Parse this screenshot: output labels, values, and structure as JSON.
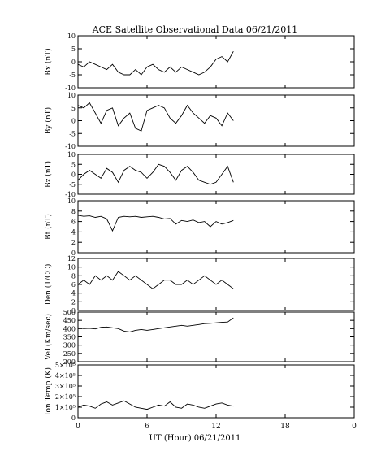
{
  "title": "ACE Satellite Observational Data   06/21/2011",
  "xlabel": "UT (Hour)   06/21/2011",
  "chart_data": [
    {
      "type": "line",
      "ylabel": "Bx (nT)",
      "ylim": [
        -10,
        10
      ],
      "yticks": [
        "-10",
        "-5",
        "0",
        "5",
        "10"
      ],
      "ytick_values": [
        -10,
        -5,
        0,
        5,
        10
      ],
      "xlim": [
        0,
        24
      ],
      "series": [
        {
          "x": [
            0,
            0.5,
            1,
            1.5,
            2,
            2.5,
            3,
            3.5,
            4,
            4.5,
            5,
            5.5,
            6,
            6.5,
            7,
            7.5,
            8,
            8.5,
            9,
            9.5,
            10,
            10.5,
            11,
            11.5,
            12,
            12.5,
            13,
            13.5
          ],
          "values": [
            -1,
            -2,
            0,
            -1,
            -2,
            -3,
            -1,
            -4,
            -5,
            -5,
            -3,
            -5,
            -2,
            -1,
            -3,
            -4,
            -2,
            -4,
            -2,
            -3,
            -4,
            -5,
            -4,
            -2,
            1,
            2,
            0,
            4
          ]
        }
      ]
    },
    {
      "type": "line",
      "ylabel": "By (nT)",
      "ylim": [
        -10,
        10
      ],
      "yticks": [
        "-10",
        "-5",
        "0",
        "5",
        "10"
      ],
      "ytick_values": [
        -10,
        -5,
        0,
        5,
        10
      ],
      "xlim": [
        0,
        24
      ],
      "series": [
        {
          "x": [
            0,
            0.5,
            1,
            1.5,
            2,
            2.5,
            3,
            3.5,
            4,
            4.5,
            5,
            5.5,
            6,
            6.5,
            7,
            7.5,
            8,
            8.5,
            9,
            9.5,
            10,
            10.5,
            11,
            11.5,
            12,
            12.5,
            13,
            13.5
          ],
          "values": [
            6,
            5,
            7,
            3,
            -1,
            4,
            5,
            -2,
            1,
            3,
            -3,
            -4,
            4,
            5,
            6,
            5,
            1,
            -1,
            2,
            6,
            3,
            1,
            -1,
            2,
            1,
            -2,
            3,
            0
          ]
        }
      ]
    },
    {
      "type": "line",
      "ylabel": "Bz (nT)",
      "ylim": [
        -10,
        10
      ],
      "yticks": [
        "-10",
        "-5",
        "0",
        "5",
        "10"
      ],
      "ytick_values": [
        -10,
        -5,
        0,
        5,
        10
      ],
      "xlim": [
        0,
        24
      ],
      "series": [
        {
          "x": [
            0,
            0.5,
            1,
            1.5,
            2,
            2.5,
            3,
            3.5,
            4,
            4.5,
            5,
            5.5,
            6,
            6.5,
            7,
            7.5,
            8,
            8.5,
            9,
            9.5,
            10,
            10.5,
            11,
            11.5,
            12,
            12.5,
            13,
            13.5
          ],
          "values": [
            -3,
            0,
            2,
            0,
            -2,
            3,
            1,
            -4,
            2,
            4,
            2,
            1,
            -2,
            1,
            5,
            4,
            1,
            -3,
            2,
            4,
            1,
            -3,
            -4,
            -5,
            -4,
            0,
            4,
            -4
          ]
        }
      ]
    },
    {
      "type": "line",
      "ylabel": "Bt (nT)",
      "ylim": [
        0,
        10
      ],
      "yticks": [
        "0",
        "2",
        "4",
        "6",
        "8",
        "10"
      ],
      "ytick_values": [
        0,
        2,
        4,
        6,
        8,
        10
      ],
      "xlim": [
        0,
        24
      ],
      "series": [
        {
          "x": [
            0,
            0.5,
            1,
            1.5,
            2,
            2.5,
            3,
            3.5,
            4,
            4.5,
            5,
            5.5,
            6,
            6.5,
            7,
            7.5,
            8,
            8.5,
            9,
            9.5,
            10,
            10.5,
            11,
            11.5,
            12,
            12.5,
            13,
            13.5
          ],
          "values": [
            7.2,
            7.0,
            7.1,
            6.8,
            7.0,
            6.5,
            4.2,
            6.8,
            7.0,
            6.9,
            7.0,
            6.8,
            6.9,
            7.0,
            6.8,
            6.5,
            6.6,
            5.5,
            6.2,
            6.0,
            6.3,
            5.8,
            6.0,
            5.0,
            6.0,
            5.5,
            5.8,
            6.2
          ]
        }
      ]
    },
    {
      "type": "line",
      "ylabel": "Den (1/CC)",
      "ylim": [
        0,
        12
      ],
      "yticks": [
        "0",
        "2",
        "4",
        "6",
        "8",
        "10",
        "12"
      ],
      "ytick_values": [
        0,
        2,
        4,
        6,
        8,
        10,
        12
      ],
      "xlim": [
        0,
        24
      ],
      "series": [
        {
          "x": [
            0,
            0.5,
            1,
            1.5,
            2,
            2.5,
            3,
            3.5,
            4,
            4.5,
            5,
            5.5,
            6,
            6.5,
            7,
            7.5,
            8,
            8.5,
            9,
            9.5,
            10,
            10.5,
            11,
            11.5,
            12,
            12.5,
            13,
            13.5
          ],
          "values": [
            6,
            7,
            6,
            8,
            7,
            8,
            7,
            9,
            8,
            7,
            8,
            7,
            6,
            5,
            6,
            7,
            7,
            6,
            6,
            7,
            6,
            7,
            8,
            7,
            6,
            7,
            6,
            5
          ]
        }
      ]
    },
    {
      "type": "line",
      "ylabel": "Vel (Km/sec)",
      "ylim": [
        200,
        500
      ],
      "yticks": [
        "200",
        "250",
        "300",
        "350",
        "400",
        "450",
        "500"
      ],
      "ytick_values": [
        200,
        250,
        300,
        350,
        400,
        450,
        500
      ],
      "xlim": [
        0,
        24
      ],
      "series": [
        {
          "x": [
            0,
            0.5,
            1,
            1.5,
            2,
            2.5,
            3,
            3.5,
            4,
            4.5,
            5,
            5.5,
            6,
            6.5,
            7,
            7.5,
            8,
            8.5,
            9,
            9.5,
            10,
            10.5,
            11,
            11.5,
            12,
            12.5,
            13,
            13.5
          ],
          "values": [
            405,
            400,
            402,
            398,
            408,
            410,
            405,
            400,
            385,
            380,
            390,
            395,
            390,
            395,
            400,
            405,
            410,
            415,
            420,
            415,
            420,
            425,
            430,
            432,
            435,
            438,
            440,
            465
          ]
        }
      ]
    },
    {
      "type": "line",
      "ylabel": "Ion Temp (K)",
      "ylim": [
        0,
        500000
      ],
      "yticks": [
        "0",
        "1×10⁵",
        "2×10⁵",
        "3×10⁵",
        "4×10⁵",
        "5×10⁵"
      ],
      "ytick_values": [
        0,
        100000,
        200000,
        300000,
        400000,
        500000
      ],
      "xlim": [
        0,
        24
      ],
      "series": [
        {
          "x": [
            0,
            0.5,
            1,
            1.5,
            2,
            2.5,
            3,
            3.5,
            4,
            4.5,
            5,
            5.5,
            6,
            6.5,
            7,
            7.5,
            8,
            8.5,
            9,
            9.5,
            10,
            10.5,
            11,
            11.5,
            12,
            12.5,
            13,
            13.5
          ],
          "values": [
            100000,
            120000,
            110000,
            90000,
            130000,
            150000,
            120000,
            140000,
            160000,
            130000,
            100000,
            90000,
            80000,
            100000,
            120000,
            110000,
            150000,
            100000,
            90000,
            130000,
            120000,
            100000,
            90000,
            110000,
            130000,
            140000,
            120000,
            110000
          ]
        }
      ]
    }
  ],
  "xticks": [
    "0",
    "6",
    "12",
    "18",
    "0"
  ],
  "xtick_values": [
    0,
    6,
    12,
    18,
    24
  ]
}
